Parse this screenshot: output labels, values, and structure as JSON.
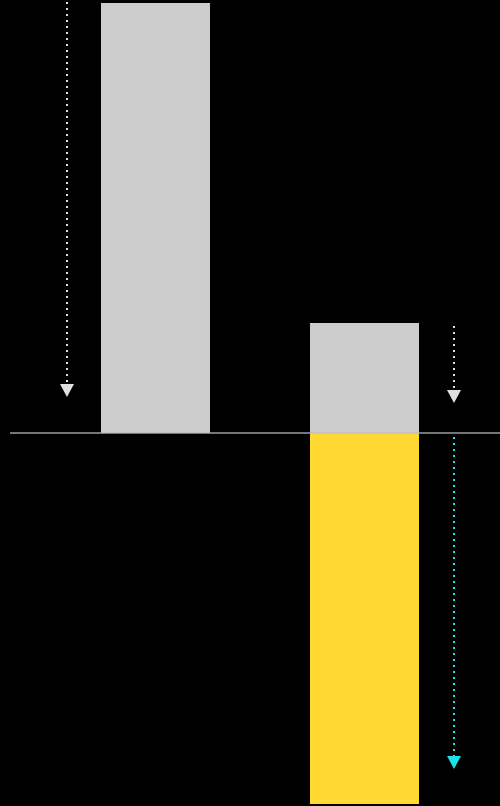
{
  "colors": {
    "background": "#000000",
    "gray_bar": "#cccccc",
    "yellow_bar": "#ffd932",
    "baseline": "#bbbbbb",
    "white_arrow": "#e0e0e0",
    "cyan_arrow": "#1ee0e6"
  },
  "bars": [
    {
      "id": "left-gray-bar",
      "color_key": "gray_bar"
    },
    {
      "id": "right-gray-bar",
      "color_key": "gray_bar"
    },
    {
      "id": "right-yellow-bar",
      "color_key": "yellow_bar"
    }
  ],
  "arrows": [
    {
      "id": "left-down-arrow",
      "color_key": "white_arrow",
      "style": "dotted"
    },
    {
      "id": "right-upper-down-arrow",
      "color_key": "white_arrow",
      "style": "dotted"
    },
    {
      "id": "right-lower-down-arrow",
      "color_key": "cyan_arrow",
      "style": "dotted"
    }
  ]
}
